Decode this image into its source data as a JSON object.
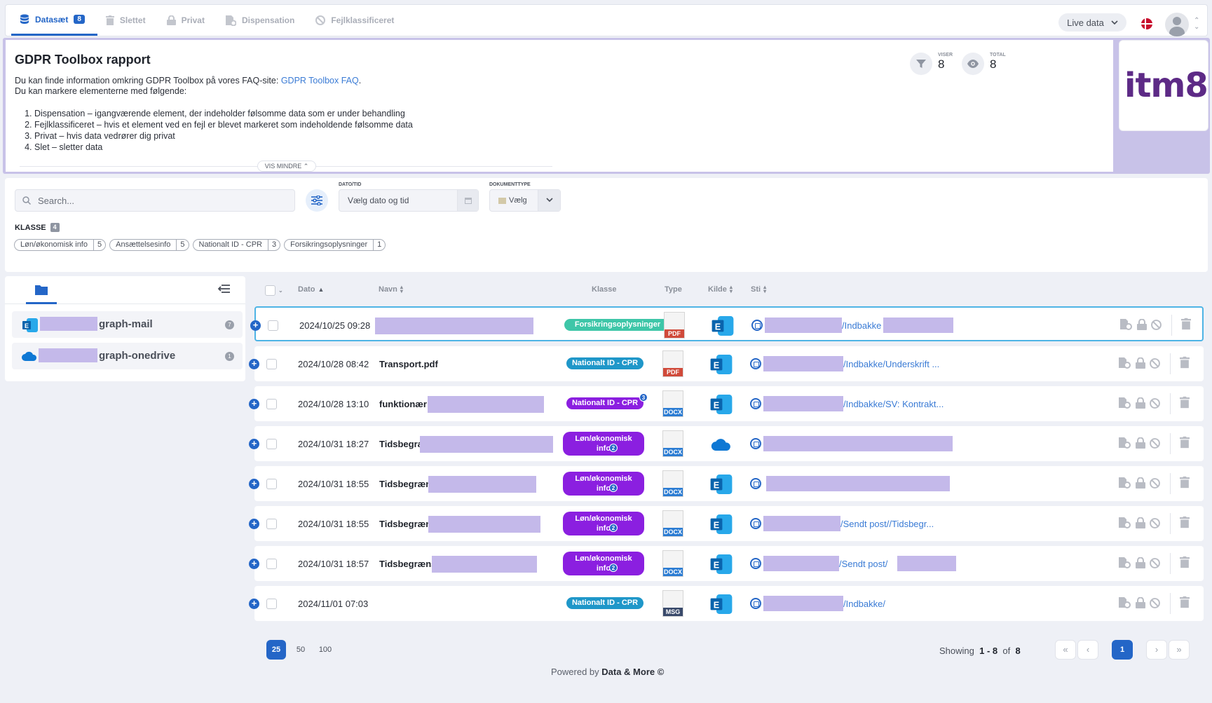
{
  "tabs": [
    {
      "label": "Datasæt",
      "badge": "8",
      "icon": "database-icon"
    },
    {
      "label": "Slettet",
      "icon": "trash-icon"
    },
    {
      "label": "Privat",
      "icon": "lock-icon"
    },
    {
      "label": "Dispensation",
      "icon": "file-cog-icon"
    },
    {
      "label": "Fejlklassificeret",
      "icon": "ban-icon"
    }
  ],
  "header": {
    "live_label": "Live data"
  },
  "report": {
    "title": "GDPR Toolbox rapport",
    "intro": "Du kan finde information omkring GDPR Toolbox på vores FAQ-site: ",
    "faq_link": "GDPR Toolbox FAQ",
    "intro_end": ".",
    "mark_text": "Du kan markere elementerne med følgende:",
    "items": [
      "Dispensation – igangværende element, der indeholder følsomme data som er under behandling",
      "Fejlklassificeret – hvis et element ved en fejl er blevet markeret som indeholdende følsomme data",
      "Privat – hvis data vedrører dig privat",
      "Slet – sletter data"
    ],
    "vis_mindre": "VIS MINDRE",
    "viser_label": "VISER",
    "viser_value": "8",
    "total_label": "TOTAL",
    "total_value": "8",
    "logo_text": "itm8"
  },
  "filters": {
    "search_placeholder": "Search...",
    "date_label": "DATO/TID",
    "date_placeholder": "Vælg dato og tid",
    "doctype_label": "DOKUMENTTYPE",
    "doctype_placeholder": "Vælg",
    "klasse_label": "KLASSE",
    "klasse_count": "4",
    "chips": [
      {
        "label": "Løn/økonomisk info",
        "count": "5"
      },
      {
        "label": "Ansættelsesinfo",
        "count": "5"
      },
      {
        "label": "Nationalt ID - CPR",
        "count": "3"
      },
      {
        "label": "Forsikringsoplysninger",
        "count": "1"
      }
    ]
  },
  "sources": [
    {
      "label": "graph-mail",
      "count": "7",
      "icon": "exchange-icon"
    },
    {
      "label": "graph-onedrive",
      "count": "1",
      "icon": "onedrive-icon"
    }
  ],
  "columns": {
    "dato": "Dato",
    "navn": "Navn",
    "klasse": "Klasse",
    "type": "Type",
    "kilde": "Kilde",
    "sti": "Sti"
  },
  "rows": [
    {
      "date": "2024/10/25 09:28",
      "name": "",
      "klasse": "Forsikringsoplysninger",
      "klasse_count": "",
      "type": "PDF",
      "source": "exchange",
      "path": "/Indbakke"
    },
    {
      "date": "2024/10/28 08:42",
      "name": "Transport.pdf",
      "klasse": "Nationalt ID - CPR",
      "klasse_count": "",
      "type": "PDF",
      "source": "exchange",
      "path": "/Indbakke/Underskrift ..."
    },
    {
      "date": "2024/10/28 13:10",
      "name": "funktionær",
      "klasse": "Nationalt ID - CPR",
      "klasse_count": "3",
      "type": "DOCX",
      "source": "exchange",
      "path": "/Indbakke/SV: Kontrakt..."
    },
    {
      "date": "2024/10/31 18:27",
      "name": "Tidsbegra",
      "klasse": "Løn/økonomisk info",
      "klasse_count": "2",
      "type": "DOCX",
      "source": "onedrive",
      "path": ""
    },
    {
      "date": "2024/10/31 18:55",
      "name": "Tidsbegræn",
      "klasse": "Løn/økonomisk info",
      "klasse_count": "2",
      "type": "DOCX",
      "source": "exchange",
      "path": ""
    },
    {
      "date": "2024/10/31 18:55",
      "name": "Tidsbegræn",
      "klasse": "Løn/økonomisk info",
      "klasse_count": "2",
      "type": "DOCX",
      "source": "exchange",
      "path": "/Sendt post//Tidsbegr..."
    },
    {
      "date": "2024/10/31 18:57",
      "name": "Tidsbegræns",
      "klasse": "Løn/økonomisk info",
      "klasse_count": "2",
      "type": "DOCX",
      "source": "exchange",
      "path": "/Sendt post/"
    },
    {
      "date": "2024/11/01 07:03",
      "name": "",
      "klasse": "Nationalt ID - CPR",
      "klasse_count": "",
      "type": "MSG",
      "source": "exchange",
      "path": "/Indbakke/"
    }
  ],
  "pagination": {
    "sizes": [
      "25",
      "50",
      "100"
    ],
    "showing_label": "Showing",
    "range": "1 - 8",
    "of_label": "of",
    "total": "8",
    "current_page": "1"
  },
  "footer": {
    "prefix": "Powered by ",
    "brand": "Data & More ©"
  },
  "colors": {
    "accent": "#2466c7",
    "redaction": "#c4b9ea",
    "purple_class": "#8b1fe0",
    "blue_class": "#1f97c9",
    "green_class": "#3ec6a8"
  }
}
